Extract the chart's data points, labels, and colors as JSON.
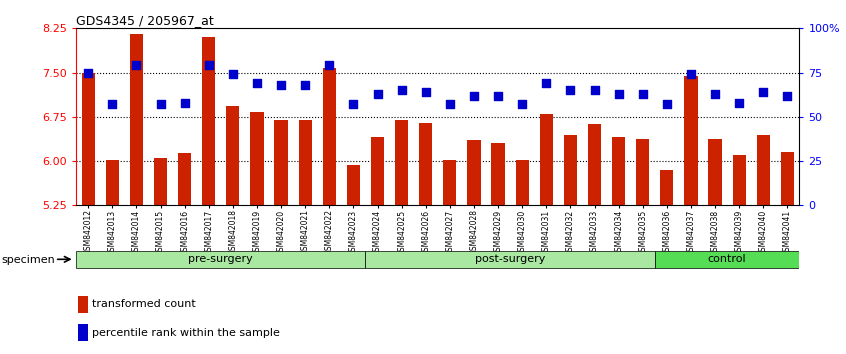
{
  "title": "GDS4345 / 205967_at",
  "samples": [
    "GSM842012",
    "GSM842013",
    "GSM842014",
    "GSM842015",
    "GSM842016",
    "GSM842017",
    "GSM842018",
    "GSM842019",
    "GSM842020",
    "GSM842021",
    "GSM842022",
    "GSM842023",
    "GSM842024",
    "GSM842025",
    "GSM842026",
    "GSM842027",
    "GSM842028",
    "GSM842029",
    "GSM842030",
    "GSM842031",
    "GSM842032",
    "GSM842033",
    "GSM842034",
    "GSM842035",
    "GSM842036",
    "GSM842037",
    "GSM842038",
    "GSM842039",
    "GSM842040",
    "GSM842041"
  ],
  "transformed_count": [
    7.49,
    6.01,
    8.15,
    6.06,
    6.13,
    8.1,
    6.93,
    6.84,
    6.7,
    6.69,
    7.58,
    5.93,
    6.4,
    6.69,
    6.65,
    6.02,
    6.35,
    6.3,
    6.02,
    6.8,
    6.44,
    6.62,
    6.4,
    6.38,
    5.85,
    7.45,
    6.38,
    6.1,
    6.45,
    6.15
  ],
  "percentile_rank": [
    75,
    57,
    79,
    57,
    58,
    79,
    74,
    69,
    68,
    68,
    79,
    57,
    63,
    65,
    64,
    57,
    62,
    62,
    57,
    69,
    65,
    65,
    63,
    63,
    57,
    74,
    63,
    58,
    64,
    62
  ],
  "groups": [
    {
      "label": "pre-surgery",
      "start": 0,
      "end": 12,
      "color": "#A8E8A0"
    },
    {
      "label": "post-surgery",
      "start": 12,
      "end": 24,
      "color": "#A8E8A0"
    },
    {
      "label": "control",
      "start": 24,
      "end": 30,
      "color": "#55DD55"
    }
  ],
  "ylim_left": [
    5.25,
    8.25
  ],
  "ylim_right": [
    0,
    100
  ],
  "yticks_left": [
    5.25,
    6.0,
    6.75,
    7.5,
    8.25
  ],
  "yticks_right": [
    0,
    25,
    50,
    75,
    100
  ],
  "ytick_labels_right": [
    "0",
    "25",
    "50",
    "75",
    "100%"
  ],
  "hlines": [
    6.0,
    6.75,
    7.5
  ],
  "bar_color": "#CC2200",
  "dot_color": "#0000CC",
  "bar_width": 0.55,
  "legend_items": [
    {
      "label": "transformed count",
      "color": "#CC2200"
    },
    {
      "label": "percentile rank within the sample",
      "color": "#0000CC"
    }
  ],
  "specimen_label": "specimen",
  "background_color": "#ffffff",
  "plot_bg": "#ffffff"
}
